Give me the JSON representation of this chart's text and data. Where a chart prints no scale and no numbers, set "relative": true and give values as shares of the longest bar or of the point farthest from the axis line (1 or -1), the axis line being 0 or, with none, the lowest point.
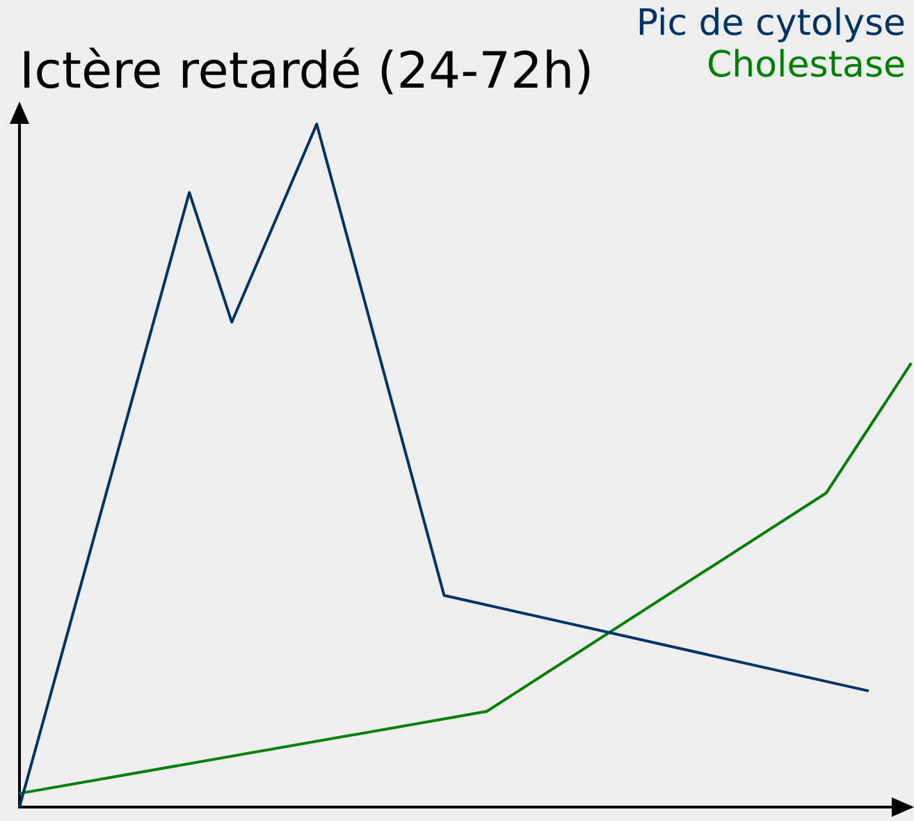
{
  "chart_data": {
    "type": "line",
    "title": "Ictère retardé (24-72h)",
    "relative": true,
    "grid": false,
    "marker": "none",
    "line_style": "solid",
    "categories": [
      null,
      null,
      null,
      null,
      null,
      null,
      null,
      null,
      null,
      null,
      null,
      null,
      null,
      null,
      null,
      null,
      null,
      null,
      null,
      null,
      null,
      null
    ],
    "series": [
      {
        "name": "Pic de cytolyse",
        "color": "#003366",
        "values": [
          0,
          null,
          null,
          null,
          0.9,
          0.71,
          null,
          1,
          null,
          null,
          0.31,
          null,
          null,
          null,
          null,
          null,
          null,
          null,
          null,
          null,
          0.17,
          null
        ]
      },
      {
        "name": "Cholestase",
        "color": "#008000",
        "values": [
          0.02,
          null,
          null,
          null,
          null,
          null,
          null,
          null,
          null,
          null,
          null,
          0.14,
          null,
          null,
          null,
          null,
          null,
          null,
          null,
          0.46,
          null,
          0.65
        ]
      }
    ]
  }
}
